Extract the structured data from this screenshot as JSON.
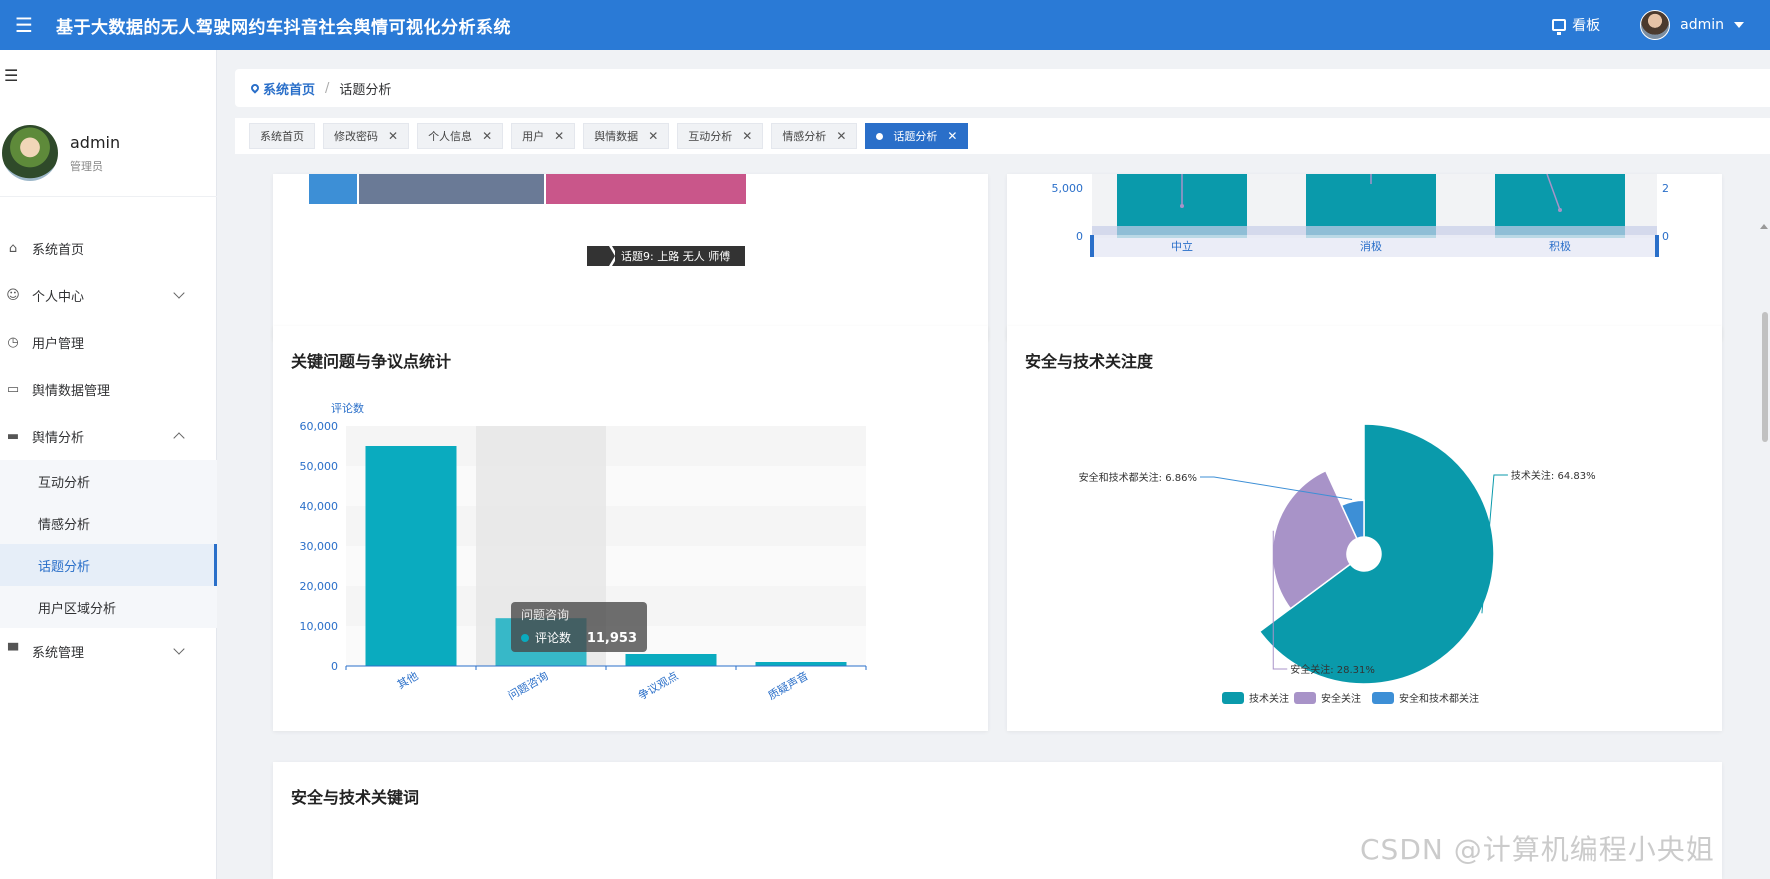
{
  "header": {
    "title": "基于大数据的无人驾驶网约车抖音社会舆情可视化分析系统",
    "kanban_label": "看板",
    "user": "admin"
  },
  "sidebar": {
    "profile_name": "admin",
    "profile_role": "管理员",
    "items": [
      {
        "label": "系统首页",
        "icon": "home-icon"
      },
      {
        "label": "个人中心",
        "icon": "user-icon",
        "expandable": true
      },
      {
        "label": "用户管理",
        "icon": "clock-icon"
      },
      {
        "label": "舆情数据管理",
        "icon": "chat-icon"
      },
      {
        "label": "舆情分析",
        "icon": "ticket-icon",
        "expanded": true
      },
      {
        "label": "系统管理",
        "icon": "monitor-icon",
        "expandable": true
      }
    ],
    "sub_items": [
      "互动分析",
      "情感分析",
      "话题分析",
      "用户区域分析"
    ],
    "active_sub": "话题分析"
  },
  "breadcrumb": {
    "home": "系统首页",
    "separator": "/",
    "current": "话题分析"
  },
  "tags": [
    {
      "label": "系统首页",
      "closable": false
    },
    {
      "label": "修改密码",
      "closable": true
    },
    {
      "label": "个人信息",
      "closable": true
    },
    {
      "label": "用户",
      "closable": true
    },
    {
      "label": "舆情数据",
      "closable": true
    },
    {
      "label": "互动分析",
      "closable": true
    },
    {
      "label": "情感分析",
      "closable": true
    },
    {
      "label": "话题分析",
      "closable": true,
      "active": true
    }
  ],
  "top_left_card": {
    "tooltip": "话题9: 上路 无人 师傅",
    "segment_colors": [
      "#3d8fd6",
      "#6a7a96",
      "#c9568a"
    ]
  },
  "top_right_card": {
    "left_ticks": [
      "5,000",
      "0"
    ],
    "right_ticks": [
      "2",
      "0"
    ],
    "categories": [
      "中立",
      "消极",
      "积极"
    ],
    "bar_color": "#0a9aab"
  },
  "issues_card": {
    "title": "关键问题与争议点统计",
    "chart_data": {
      "type": "bar",
      "categories": [
        "其他",
        "问题咨询",
        "争议观点",
        "质疑声音"
      ],
      "values": [
        55000,
        11953,
        3000,
        1000
      ],
      "ylabel": "评论数",
      "ylim": [
        0,
        60000
      ],
      "yticks": [
        "60,000",
        "50,000",
        "40,000",
        "30,000",
        "20,000",
        "10,000",
        "0"
      ],
      "tooltip": {
        "category": "问题咨询",
        "series": "评论数",
        "value": "11,953"
      },
      "highlight_index": 1,
      "color": "#0aabbf"
    }
  },
  "security_card": {
    "title": "安全与技术关注度",
    "chart_data": {
      "type": "pie",
      "rose": true,
      "slices": [
        {
          "name": "技术关注",
          "value": 64.83,
          "label": "技术关注: 64.83%",
          "color": "#0a9aab"
        },
        {
          "name": "安全关注",
          "value": 28.31,
          "label": "安全关注: 28.31%",
          "color": "#a893c8"
        },
        {
          "name": "安全和技术都关注",
          "value": 6.86,
          "label": "安全和技术都关注: 6.86%",
          "color": "#3d8fd6"
        }
      ],
      "legend": [
        "技术关注",
        "安全关注",
        "安全和技术都关注"
      ],
      "legend_position": "bottom"
    }
  },
  "keywords_card": {
    "title": "安全与技术关键词"
  },
  "watermark": "CSDN @计算机编程小央姐"
}
